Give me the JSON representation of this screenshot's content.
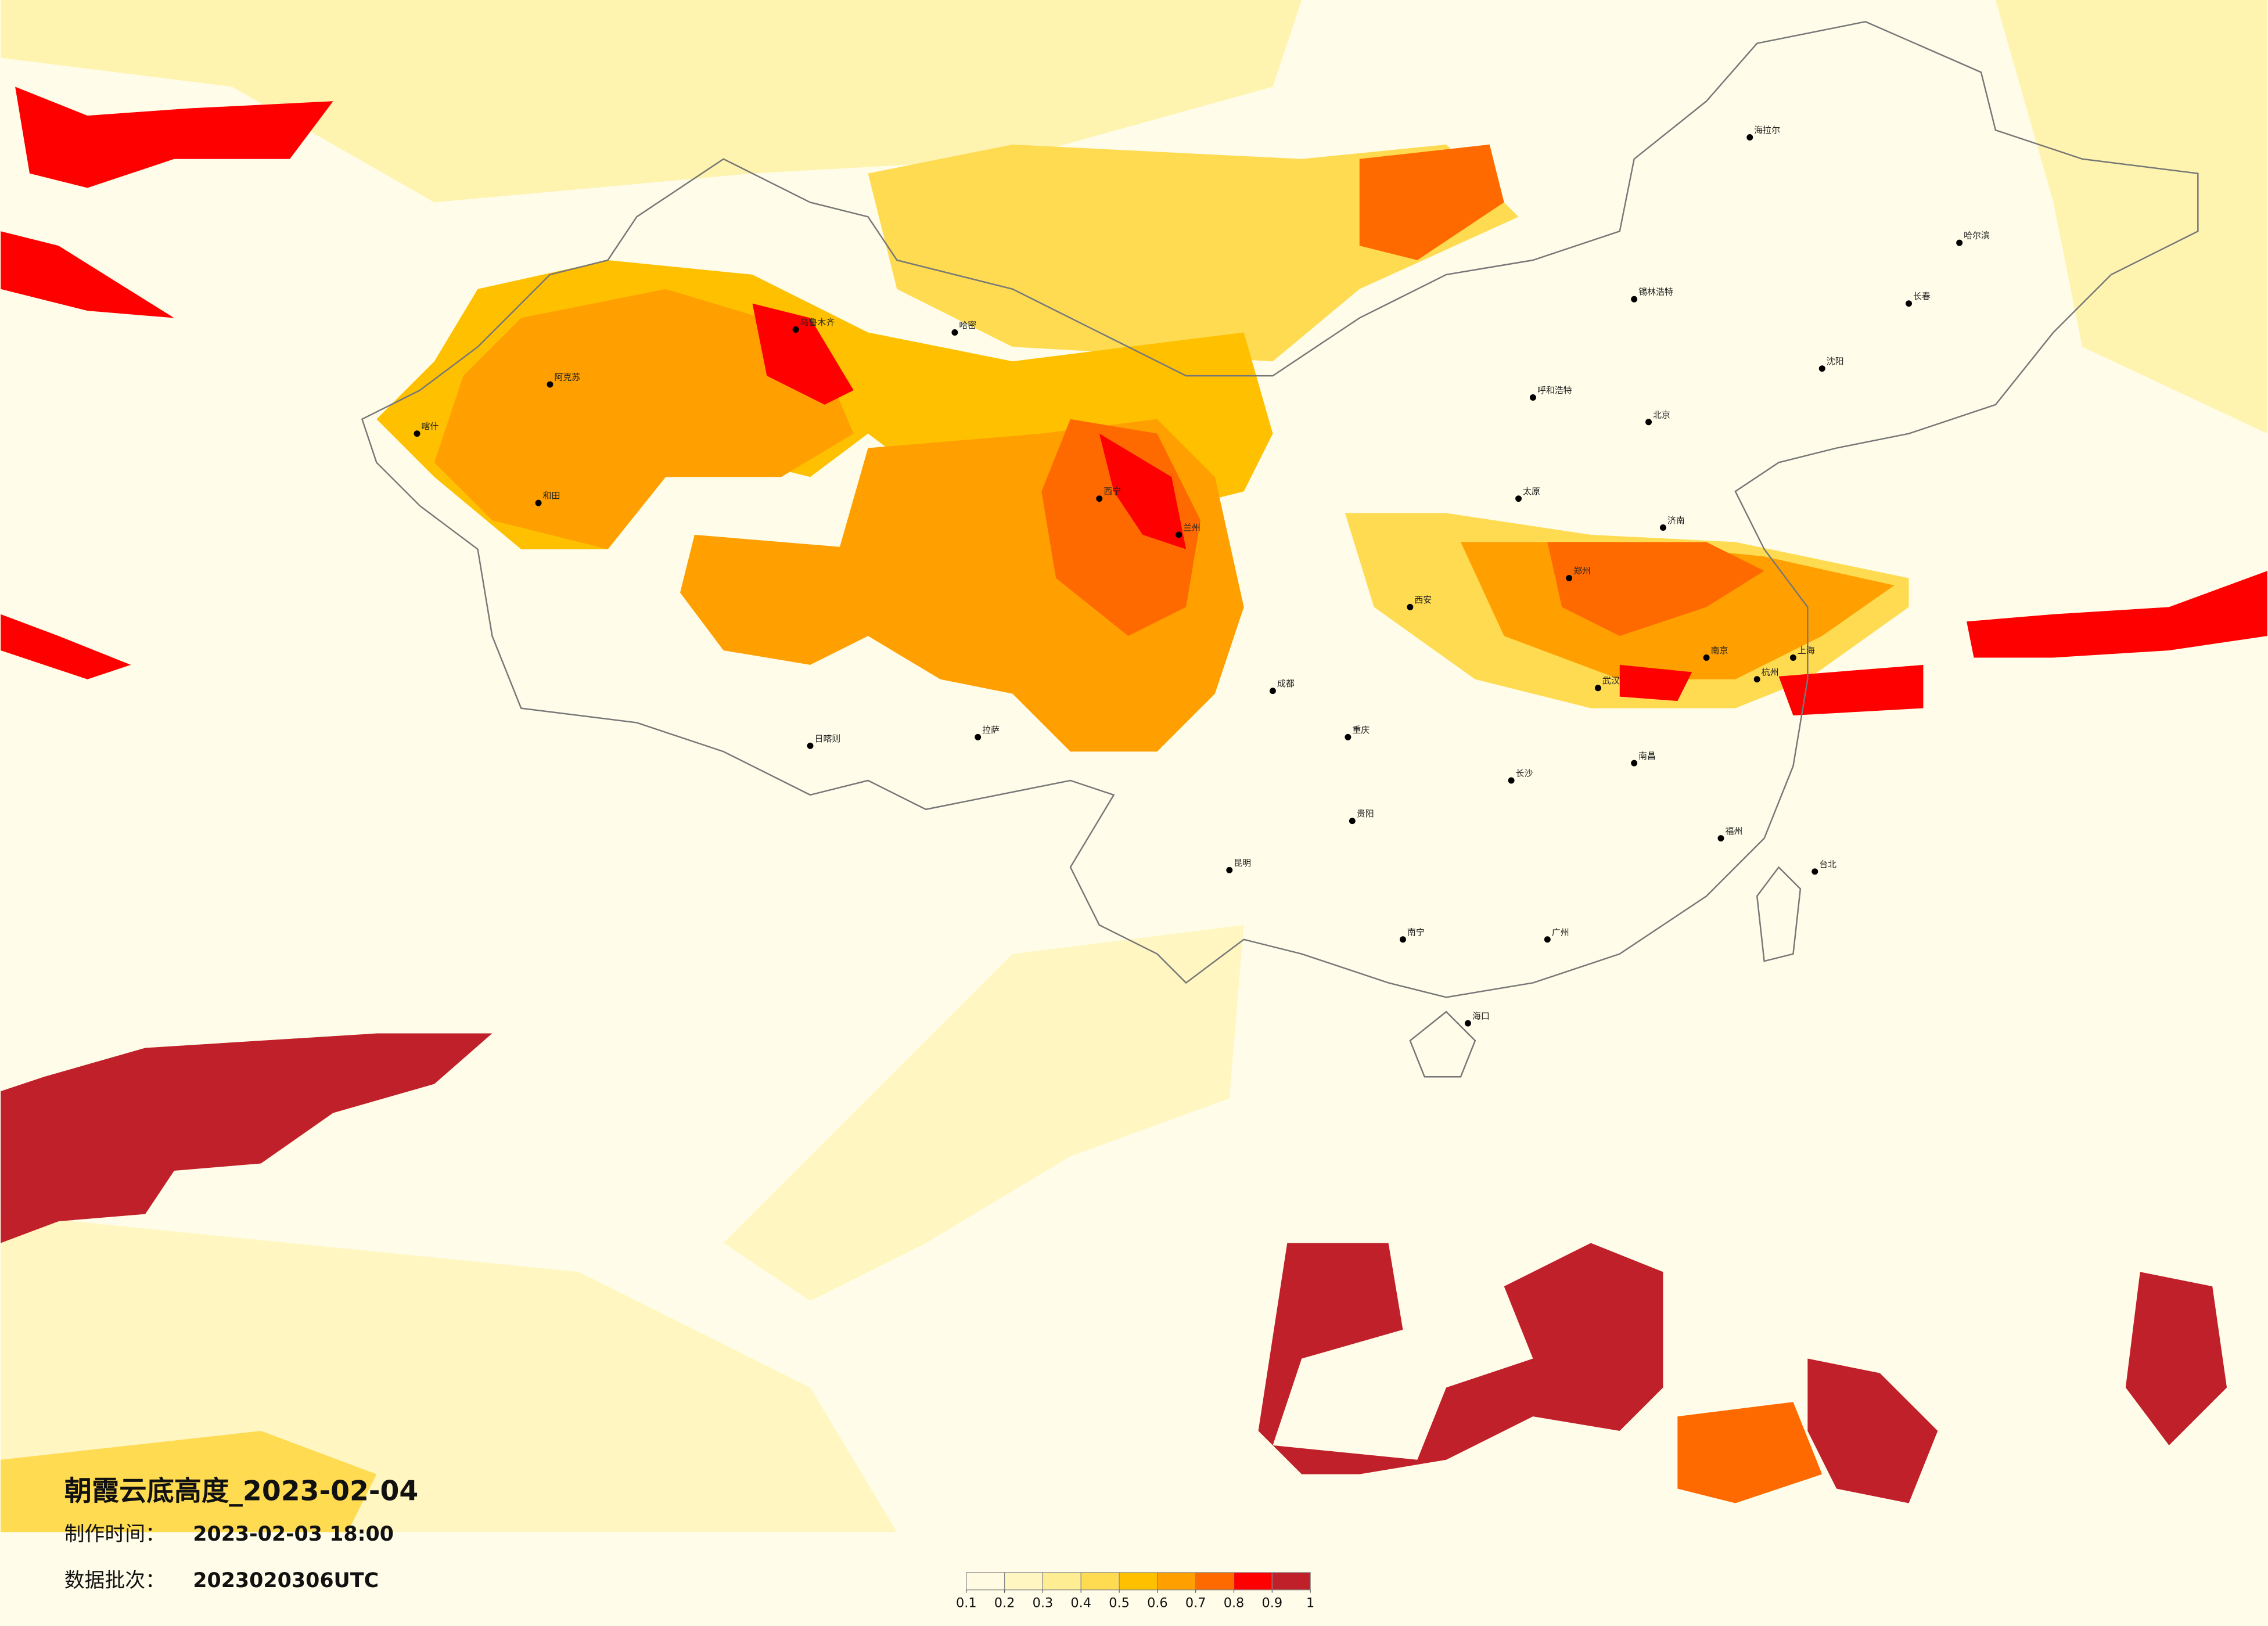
{
  "map": {
    "title": "朝霞云底高度_2023-02-04",
    "production_label": "制作时间：",
    "production_time": "2023-02-03 18:00",
    "batch_label": "数据批次：",
    "batch": "2023020306UTC",
    "colorbar": {
      "ticks": [
        0.1,
        0.2,
        0.3,
        0.4,
        0.5,
        0.6,
        0.7,
        0.8,
        0.9,
        1
      ],
      "colors": [
        "#fffbe3",
        "#fff6c2",
        "#ffed94",
        "#ffdb52",
        "#ffc000",
        "#ff9f00",
        "#ff6a00",
        "#ff0000",
        "#c0202a"
      ]
    },
    "cities": [
      "乌鲁木齐",
      "哈密",
      "阿克苏",
      "和田",
      "喀什",
      "拉萨",
      "日喀则",
      "西宁",
      "兰州",
      "成都",
      "重庆",
      "昆明",
      "贵阳",
      "南宁",
      "广州",
      "长沙",
      "武汉",
      "南昌",
      "福州",
      "杭州",
      "上海",
      "南京",
      "郑州",
      "西安",
      "太原",
      "北京",
      "济南",
      "沈阳",
      "长春",
      "哈尔滨",
      "呼和浩特",
      "海口",
      "台北",
      "海拉尔",
      "锡林浩特"
    ]
  }
}
